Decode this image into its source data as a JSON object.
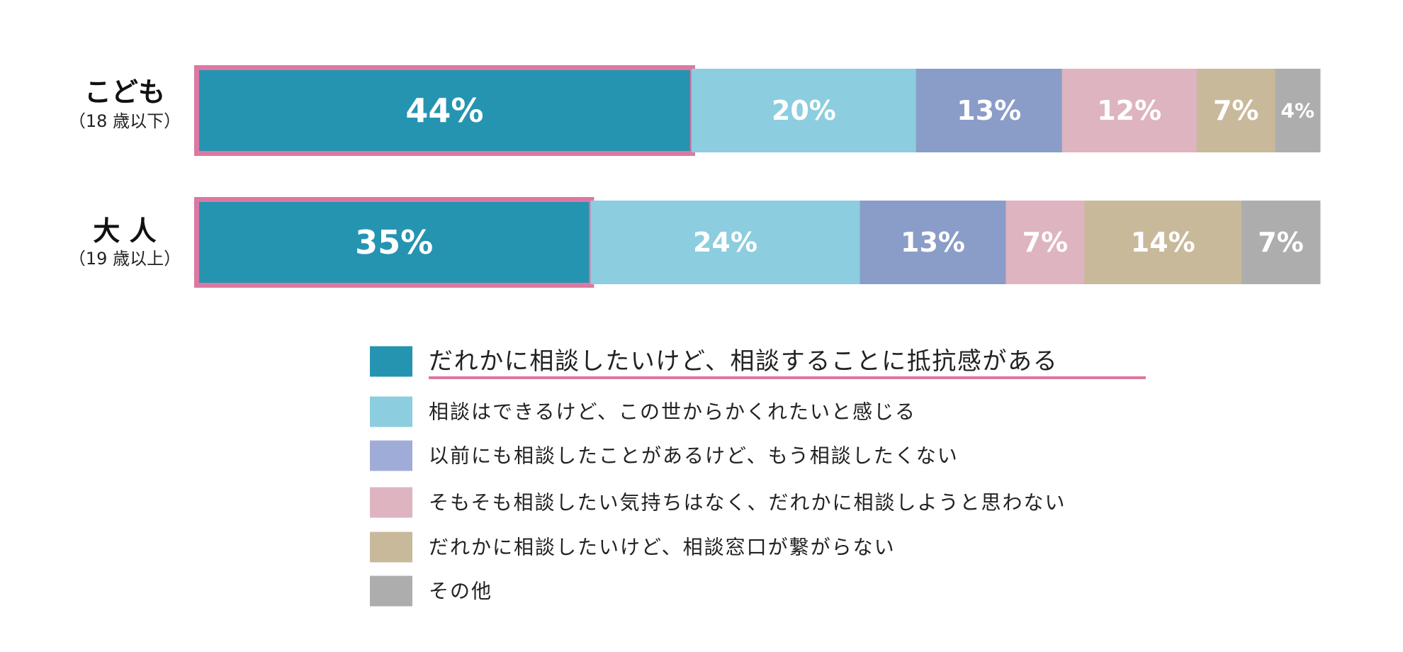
{
  "chart_data": {
    "type": "bar",
    "orientation": "horizontal",
    "stacked": true,
    "unit": "%",
    "categories": [
      {
        "name": "こども",
        "sub": "（18 歳以下）"
      },
      {
        "name": "大 人",
        "sub": "（19 歳以上）"
      }
    ],
    "series": [
      {
        "name": "だれかに相談したいけど、相談することに抵抗感がある",
        "color": "#2594b1",
        "values": [
          44,
          35
        ],
        "labels": [
          "44%",
          "35%"
        ],
        "highlighted": true
      },
      {
        "name": "相談はできるけど、この世からかくれたいと感じる",
        "color": "#8ccddf",
        "values": [
          20,
          24
        ],
        "labels": [
          "20%",
          "24%"
        ]
      },
      {
        "name": "以前にも相談したことがあるけど、もう相談したくない",
        "color": "#8a9cc8",
        "values": [
          13,
          13
        ],
        "labels": [
          "13%",
          "13%"
        ]
      },
      {
        "name": "そもそも相談したい気持ちはなく、だれかに相談しようと思わない",
        "color": "#deb4c0",
        "values": [
          12,
          7
        ],
        "labels": [
          "12%",
          "7%"
        ]
      },
      {
        "name": "だれかに相談したいけど、相談窓口が繋がらない",
        "color": "#c9b99b",
        "values": [
          7,
          14
        ],
        "labels": [
          "7%",
          "14%"
        ]
      },
      {
        "name": "その他",
        "color": "#adadad",
        "values": [
          4,
          7
        ],
        "labels": [
          "4%",
          "7%"
        ]
      }
    ],
    "legend_swatch_colors": [
      "#2594b1",
      "#8ccddf",
      "#a0acd8",
      "#deb4c0",
      "#c9b99b",
      "#adadad"
    ],
    "highlight_color": "#dc78a2",
    "legend_position": "bottom",
    "grid": false
  }
}
